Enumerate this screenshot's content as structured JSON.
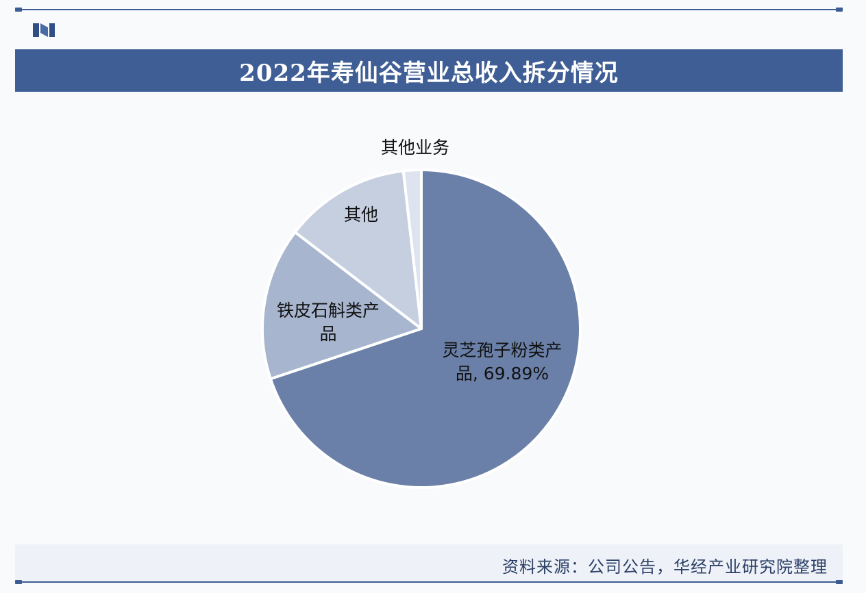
{
  "header": {
    "title": "2022年寿仙谷营业总收入拆分情况"
  },
  "footer": {
    "source": "资料来源：公司公告，华经产业研究院整理"
  },
  "colors": {
    "accent": "#3f5e95",
    "slice_main": "#6a80a8",
    "slice_2": "#a7b5cf",
    "slice_3": "#c5cfe0",
    "slice_4": "#dde4ef"
  },
  "chart_data": {
    "type": "pie",
    "title": "2022年寿仙谷营业总收入拆分情况",
    "legend": "none",
    "slices": [
      {
        "label_lines": [
          "灵芝孢子粉类产",
          "品, 69.89%"
        ],
        "value": 69.89,
        "color": "#6a80a8"
      },
      {
        "label_lines": [
          "铁皮石斛类产",
          "品"
        ],
        "value": 15.5,
        "color": "#a7b5cf"
      },
      {
        "label_lines": [
          "其他"
        ],
        "value": 12.8,
        "color": "#c5cfe0"
      },
      {
        "label_lines": [
          "其他业务"
        ],
        "value": 1.81,
        "color": "#dde4ef"
      }
    ]
  }
}
